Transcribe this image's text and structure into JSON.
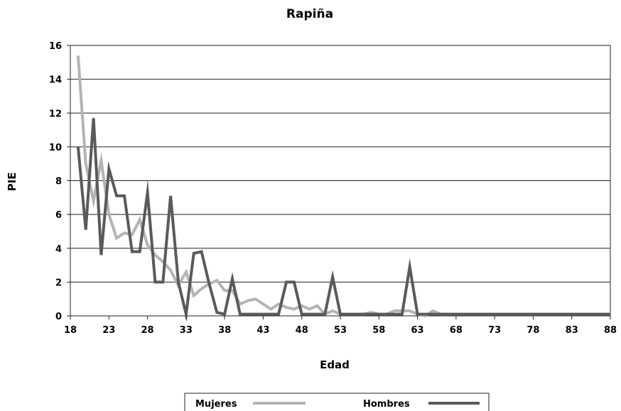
{
  "chart_data": {
    "type": "line",
    "title": "Rapiña",
    "xlabel": "Edad",
    "ylabel": "PIE",
    "xlim": [
      18,
      88
    ],
    "ylim": [
      0,
      16
    ],
    "xticks": [
      18,
      23,
      28,
      33,
      38,
      43,
      48,
      53,
      58,
      63,
      68,
      73,
      78,
      83,
      88
    ],
    "yticks": [
      0,
      2,
      4,
      6,
      8,
      10,
      12,
      14,
      16
    ],
    "grid": "horizontal",
    "legend_position": "bottom",
    "series": [
      {
        "name": "Mujeres",
        "color": "#b4b4b4",
        "points": [
          [
            19,
            15.4
          ],
          [
            20,
            9.0
          ],
          [
            21,
            6.8
          ],
          [
            22,
            9.2
          ],
          [
            23,
            6.0
          ],
          [
            24,
            4.6
          ],
          [
            25,
            4.9
          ],
          [
            26,
            4.8
          ],
          [
            27,
            5.7
          ],
          [
            28,
            4.2
          ],
          [
            29,
            3.6
          ],
          [
            30,
            3.2
          ],
          [
            31,
            2.7
          ],
          [
            32,
            1.8
          ],
          [
            33,
            2.6
          ],
          [
            34,
            1.2
          ],
          [
            35,
            1.6
          ],
          [
            36,
            1.9
          ],
          [
            37,
            2.1
          ],
          [
            38,
            1.5
          ],
          [
            39,
            1.5
          ],
          [
            40,
            0.7
          ],
          [
            41,
            0.9
          ],
          [
            42,
            1.0
          ],
          [
            43,
            0.7
          ],
          [
            44,
            0.4
          ],
          [
            45,
            0.7
          ],
          [
            46,
            0.5
          ],
          [
            47,
            0.4
          ],
          [
            48,
            0.6
          ],
          [
            49,
            0.4
          ],
          [
            50,
            0.6
          ],
          [
            51,
            0.1
          ],
          [
            52,
            0.3
          ],
          [
            53,
            0.1
          ],
          [
            54,
            0.1
          ],
          [
            55,
            0.1
          ],
          [
            56,
            0.1
          ],
          [
            57,
            0.2
          ],
          [
            58,
            0.1
          ],
          [
            59,
            0.1
          ],
          [
            60,
            0.3
          ],
          [
            61,
            0.3
          ],
          [
            62,
            0.3
          ],
          [
            63,
            0.1
          ],
          [
            64,
            0.0
          ],
          [
            65,
            0.3
          ],
          [
            66,
            0.1
          ],
          [
            67,
            0.1
          ],
          [
            68,
            0.1
          ],
          [
            88,
            0.1
          ]
        ]
      },
      {
        "name": "Hombres",
        "color": "#5a5a5a",
        "points": [
          [
            19,
            10.0
          ],
          [
            20,
            5.1
          ],
          [
            21,
            11.7
          ],
          [
            22,
            3.6
          ],
          [
            23,
            8.7
          ],
          [
            24,
            7.1
          ],
          [
            25,
            7.1
          ],
          [
            26,
            3.8
          ],
          [
            27,
            3.8
          ],
          [
            28,
            7.3
          ],
          [
            29,
            2.0
          ],
          [
            30,
            2.0
          ],
          [
            31,
            7.1
          ],
          [
            32,
            2.0
          ],
          [
            33,
            0.1
          ],
          [
            34,
            3.7
          ],
          [
            35,
            3.8
          ],
          [
            36,
            1.9
          ],
          [
            37,
            0.2
          ],
          [
            38,
            0.1
          ],
          [
            39,
            2.2
          ],
          [
            40,
            0.1
          ],
          [
            41,
            0.1
          ],
          [
            42,
            0.1
          ],
          [
            43,
            0.1
          ],
          [
            44,
            0.1
          ],
          [
            45,
            0.1
          ],
          [
            46,
            2.0
          ],
          [
            47,
            2.0
          ],
          [
            48,
            0.1
          ],
          [
            49,
            0.1
          ],
          [
            50,
            0.1
          ],
          [
            51,
            0.1
          ],
          [
            52,
            2.3
          ],
          [
            53,
            0.1
          ],
          [
            54,
            0.1
          ],
          [
            55,
            0.1
          ],
          [
            56,
            0.1
          ],
          [
            57,
            0.1
          ],
          [
            58,
            0.1
          ],
          [
            59,
            0.1
          ],
          [
            60,
            0.1
          ],
          [
            61,
            0.1
          ],
          [
            62,
            2.9
          ],
          [
            63,
            0.1
          ],
          [
            64,
            0.1
          ],
          [
            65,
            0.1
          ],
          [
            66,
            0.1
          ],
          [
            67,
            0.1
          ],
          [
            68,
            0.1
          ],
          [
            88,
            0.1
          ]
        ]
      }
    ]
  }
}
